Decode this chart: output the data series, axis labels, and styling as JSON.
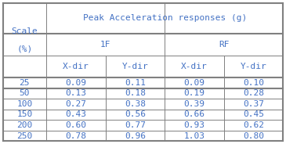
{
  "title": "Peak Acceleration responses (g)",
  "scale_header": "Scale\n\n(%)",
  "sub_headers": [
    "1F",
    "RF"
  ],
  "col_labels": [
    "X-dir",
    "Y-dir",
    "X-dir",
    "Y-dir"
  ],
  "row_labels": [
    "25",
    "50",
    "100",
    "150",
    "200",
    "250"
  ],
  "table_data": [
    [
      "0.09",
      "0.11",
      "0.09",
      "0.10"
    ],
    [
      "0.13",
      "0.18",
      "0.19",
      "0.28"
    ],
    [
      "0.27",
      "0.38",
      "0.39",
      "0.37"
    ],
    [
      "0.43",
      "0.56",
      "0.66",
      "0.45"
    ],
    [
      "0.60",
      "0.77",
      "0.93",
      "0.62"
    ],
    [
      "0.78",
      "0.96",
      "1.03",
      "0.80"
    ]
  ],
  "text_color": "#4472C4",
  "border_color": "#808080",
  "bg_color": "#FFFFFF",
  "font_size": 8.0,
  "header_font_size": 8.0
}
